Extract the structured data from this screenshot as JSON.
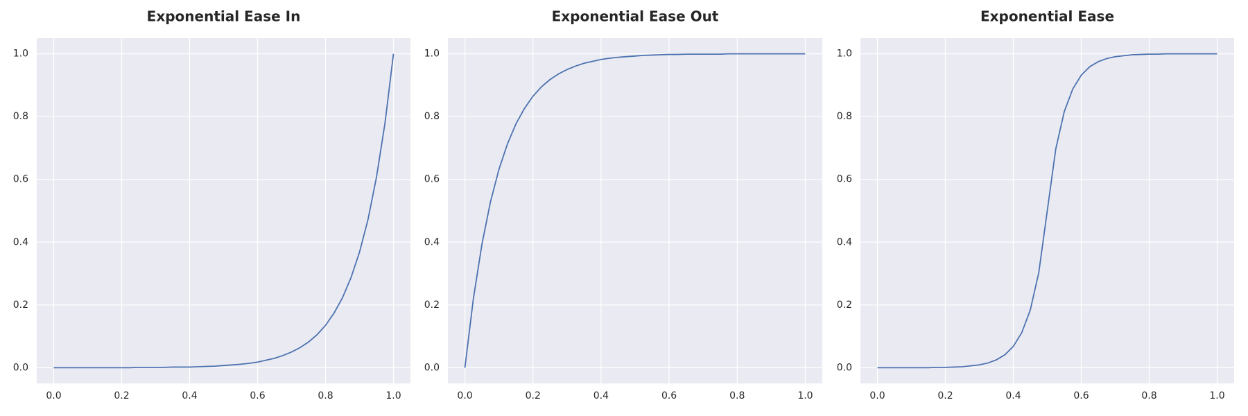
{
  "chart_data": [
    {
      "type": "line",
      "title": "Exponential Ease In",
      "color": "#4c72b0",
      "grid": true,
      "x": [
        0,
        0.025,
        0.05,
        0.075,
        0.1,
        0.125,
        0.15,
        0.175,
        0.2,
        0.225,
        0.25,
        0.275,
        0.3,
        0.325,
        0.35,
        0.375,
        0.4,
        0.425,
        0.45,
        0.475,
        0.5,
        0.525,
        0.55,
        0.575,
        0.6,
        0.625,
        0.65,
        0.675,
        0.7,
        0.725,
        0.75,
        0.775,
        0.8,
        0.825,
        0.85,
        0.875,
        0.9,
        0.925,
        0.95,
        0.975,
        1
      ],
      "values": [
        0,
        0,
        0,
        0,
        0,
        0,
        0,
        0,
        0,
        0,
        0.001,
        0.001,
        0.001,
        0.001,
        0.002,
        0.002,
        0.002,
        0.003,
        0.004,
        0.005,
        0.007,
        0.009,
        0.011,
        0.014,
        0.018,
        0.024,
        0.03,
        0.039,
        0.05,
        0.064,
        0.082,
        0.105,
        0.135,
        0.174,
        0.223,
        0.287,
        0.368,
        0.472,
        0.607,
        0.779,
        1
      ],
      "xlim": [
        -0.05,
        1.05
      ],
      "ylim": [
        -0.05,
        1.05
      ],
      "xticks": [
        {
          "value": 0,
          "label": "0.0"
        },
        0.2,
        0.4,
        0.6,
        0.8,
        {
          "value": 1,
          "label": "1.0"
        }
      ],
      "yticks": [
        {
          "value": 0,
          "label": "0.0"
        },
        0.2,
        0.4,
        0.6,
        0.8,
        {
          "value": 1,
          "label": "1.0"
        }
      ]
    },
    {
      "type": "line",
      "title": "Exponential Ease Out",
      "color": "#4c72b0",
      "grid": true,
      "x": [
        0,
        0.025,
        0.05,
        0.075,
        0.1,
        0.125,
        0.15,
        0.175,
        0.2,
        0.225,
        0.25,
        0.275,
        0.3,
        0.325,
        0.35,
        0.375,
        0.4,
        0.425,
        0.45,
        0.475,
        0.5,
        0.525,
        0.55,
        0.575,
        0.6,
        0.625,
        0.65,
        0.675,
        0.7,
        0.725,
        0.75,
        0.775,
        0.8,
        0.825,
        0.85,
        0.875,
        0.9,
        0.925,
        0.95,
        0.975,
        1
      ],
      "values": [
        0,
        0.221,
        0.393,
        0.528,
        0.632,
        0.713,
        0.777,
        0.826,
        0.865,
        0.895,
        0.918,
        0.936,
        0.95,
        0.961,
        0.97,
        0.976,
        0.982,
        0.986,
        0.989,
        0.991,
        0.993,
        0.995,
        0.996,
        0.997,
        0.998,
        0.998,
        0.999,
        0.999,
        0.999,
        0.999,
        0.999,
        1,
        1,
        1,
        1,
        1,
        1,
        1,
        1,
        1,
        1
      ],
      "xlim": [
        -0.05,
        1.05
      ],
      "ylim": [
        -0.05,
        1.05
      ],
      "xticks": [
        {
          "value": 0,
          "label": "0.0"
        },
        0.2,
        0.4,
        0.6,
        0.8,
        {
          "value": 1,
          "label": "1.0"
        }
      ],
      "yticks": [
        {
          "value": 0,
          "label": "0.0"
        },
        0.2,
        0.4,
        0.6,
        0.8,
        {
          "value": 1,
          "label": "1.0"
        }
      ]
    },
    {
      "type": "line",
      "title": "Exponential Ease",
      "color": "#4c72b0",
      "grid": true,
      "x": [
        0,
        0.025,
        0.05,
        0.075,
        0.1,
        0.125,
        0.15,
        0.175,
        0.2,
        0.225,
        0.25,
        0.275,
        0.3,
        0.325,
        0.35,
        0.375,
        0.4,
        0.425,
        0.45,
        0.475,
        0.5,
        0.525,
        0.55,
        0.575,
        0.6,
        0.625,
        0.65,
        0.675,
        0.7,
        0.725,
        0.75,
        0.775,
        0.8,
        0.825,
        0.85,
        0.875,
        0.9,
        0.925,
        0.95,
        0.975,
        1
      ],
      "values": [
        0,
        0,
        0,
        0,
        0,
        0,
        0,
        0.001,
        0.001,
        0.002,
        0.003,
        0.006,
        0.009,
        0.015,
        0.025,
        0.041,
        0.068,
        0.112,
        0.184,
        0.303,
        0.5,
        0.697,
        0.816,
        0.888,
        0.932,
        0.959,
        0.975,
        0.985,
        0.991,
        0.994,
        0.997,
        0.998,
        0.999,
        0.999,
        1,
        1,
        1,
        1,
        1,
        1,
        1
      ],
      "xlim": [
        -0.05,
        1.05
      ],
      "ylim": [
        -0.05,
        1.05
      ],
      "xticks": [
        {
          "value": 0,
          "label": "0.0"
        },
        0.2,
        0.4,
        0.6,
        0.8,
        {
          "value": 1,
          "label": "1.0"
        }
      ],
      "yticks": [
        {
          "value": 0,
          "label": "0.0"
        },
        0.2,
        0.4,
        0.6,
        0.8,
        {
          "value": 1,
          "label": "1.0"
        }
      ]
    }
  ]
}
